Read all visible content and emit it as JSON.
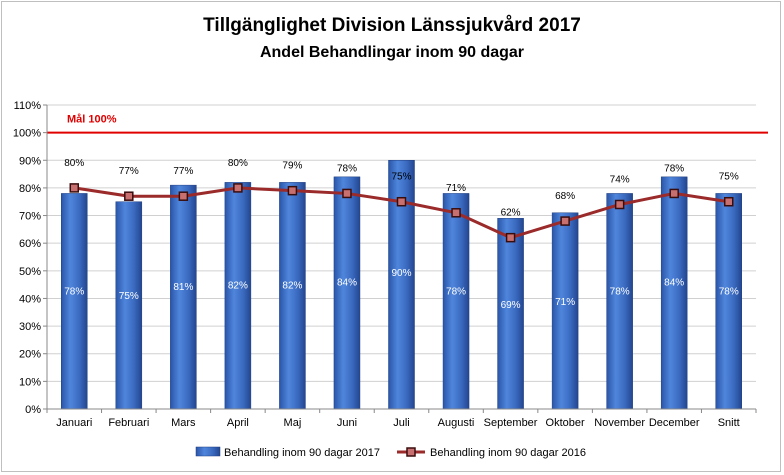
{
  "chart_data": {
    "type": "bar",
    "title": "Tillgänglighet Division Länssjukvård 2017",
    "subtitle": "Andel Behandlingar inom 90 dagar",
    "categories": [
      "Januari",
      "Februari",
      "Mars",
      "April",
      "Maj",
      "Juni",
      "Juli",
      "Augusti",
      "September",
      "Oktober",
      "November",
      "December",
      "Snitt"
    ],
    "series": [
      {
        "name": "Behandling inom 90 dagar 2017",
        "kind": "bar",
        "color": "#3b6fc4",
        "values": [
          78,
          75,
          81,
          82,
          82,
          84,
          90,
          78,
          69,
          71,
          78,
          84,
          78
        ],
        "labels": [
          "78%",
          "75%",
          "81%",
          "82%",
          "82%",
          "84%",
          "90%",
          "78%",
          "69%",
          "71%",
          "78%",
          "84%",
          "78%"
        ]
      },
      {
        "name": "Behandling inom 90 dagar 2016",
        "kind": "line",
        "color": "#9b2a2a",
        "values": [
          80,
          77,
          77,
          80,
          79,
          78,
          75,
          71,
          62,
          68,
          74,
          78,
          75
        ],
        "labels": [
          "80%",
          "77%",
          "77%",
          "80%",
          "79%",
          "78%",
          "75%",
          "71%",
          "62%",
          "68%",
          "74%",
          "78%",
          "75%"
        ]
      }
    ],
    "target": {
      "label": "Mål  100%",
      "value": 100,
      "color": "#e00000"
    },
    "y_ticks": [
      "0%",
      "10%",
      "20%",
      "30%",
      "40%",
      "50%",
      "60%",
      "70%",
      "80%",
      "90%",
      "100%",
      "110%"
    ],
    "ylim": [
      0,
      110
    ],
    "grid": true,
    "legend_position": "bottom"
  }
}
